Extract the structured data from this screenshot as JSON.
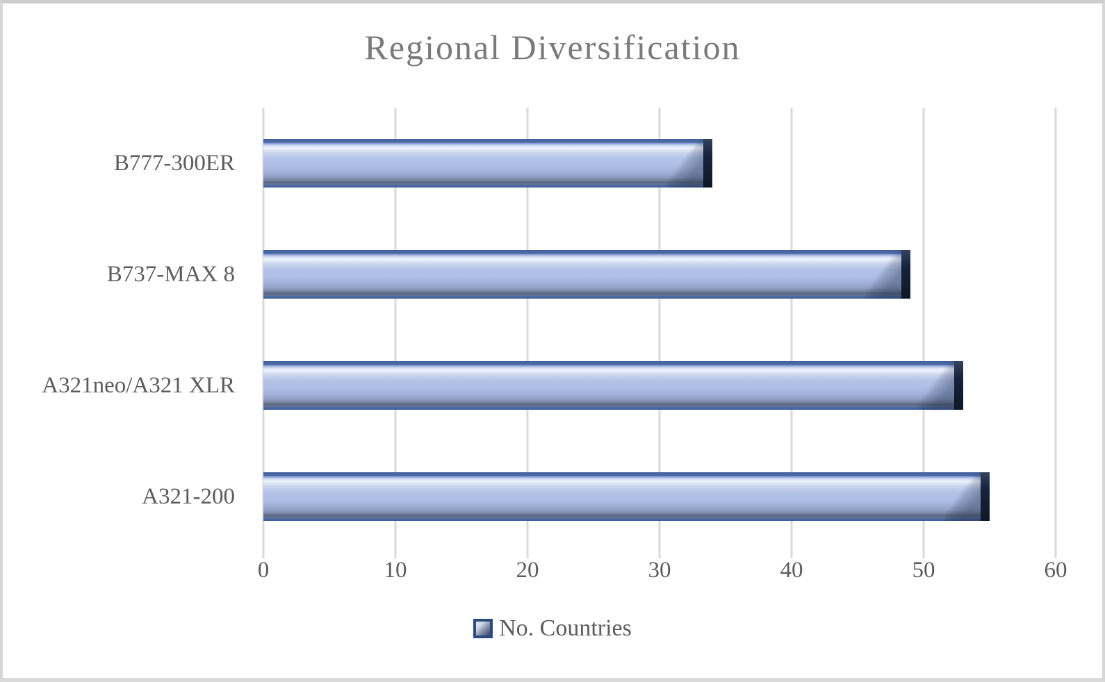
{
  "chart_data": {
    "type": "bar",
    "orientation": "horizontal",
    "title": "Regional Diversification",
    "categories": [
      "B777-300ER",
      "B737-MAX 8",
      "A321neo/A321 XLR",
      "A321-200"
    ],
    "values": [
      34,
      49,
      53,
      55
    ],
    "series": [
      {
        "name": "No. Countries",
        "values": [
          34,
          49,
          53,
          55
        ]
      }
    ],
    "legend_label": "No. Countries",
    "legend_position": "bottom",
    "xlabel": "",
    "ylabel": "",
    "xlim": [
      0,
      60
    ],
    "x_ticks": [
      0,
      10,
      20,
      30,
      40,
      50,
      60
    ],
    "grid": "vertical-on",
    "colors": {
      "bar_fill": "#b4c3e8",
      "bar_highlight": "#eef3fc",
      "bar_rim": "#4a68a4",
      "bar_end_cap": "#16233c",
      "gridline": "#d9d9d9",
      "axis_text": "#5c5c5c",
      "title_text": "#7a7a7a",
      "frame_border": "#d6d6d6",
      "background": "#ffffff"
    }
  }
}
